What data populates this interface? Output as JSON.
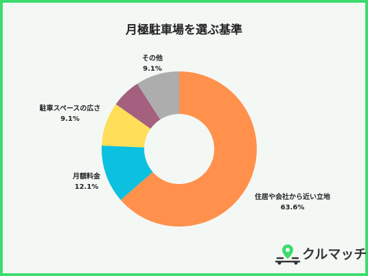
{
  "chart_data": {
    "type": "donut",
    "title": "月極駐車場を選ぶ基準",
    "categories": [
      "住居や会社から近い立地",
      "月額料金",
      "駐車スペースの広さ",
      null,
      "その他"
    ],
    "values": [
      63.6,
      12.1,
      9.1,
      6.1,
      9.1
    ],
    "value_labels": [
      "63.6%",
      "12.1%",
      "9.1%",
      null,
      "9.1%"
    ],
    "colors": [
      "#FF914D",
      "#0CC0DF",
      "#FFDE59",
      "#A5607F",
      "#ADADAD"
    ]
  },
  "brand": "クルマッチ"
}
